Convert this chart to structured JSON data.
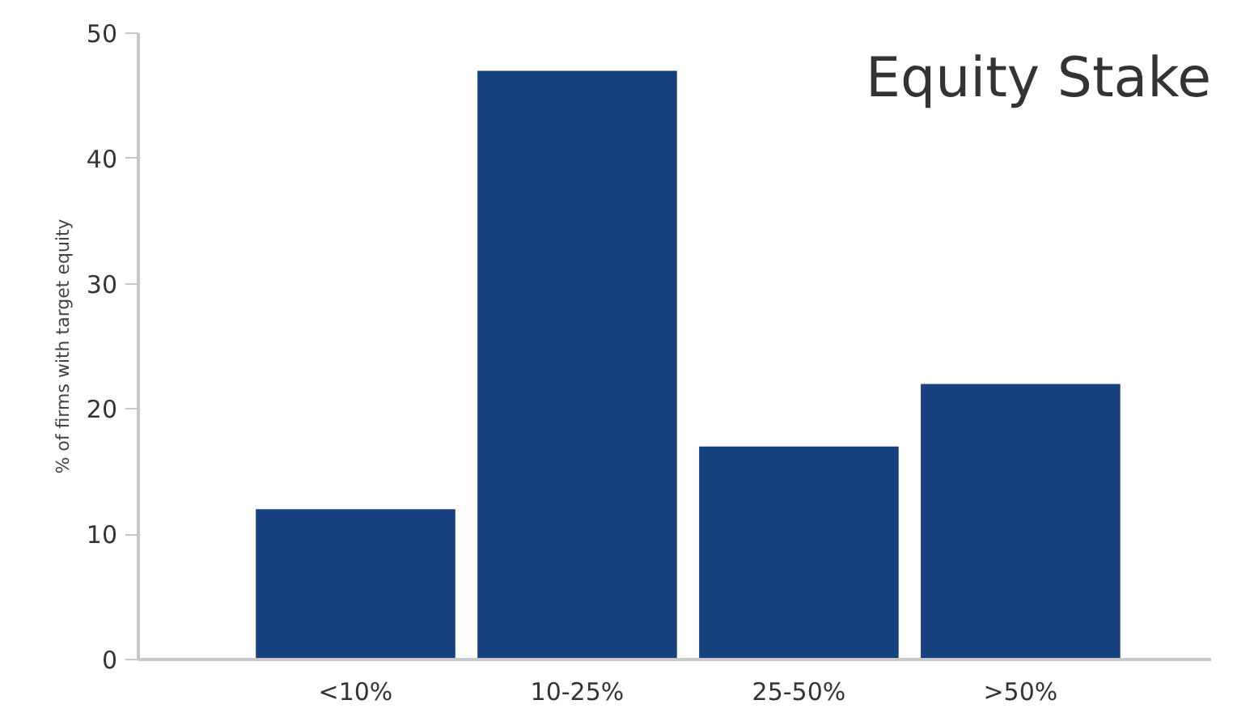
{
  "chart_data": {
    "type": "bar",
    "title": "Equity Stake",
    "ylabel": "% of firms with target equity",
    "categories": [
      "<10%",
      "10-25%",
      "25-50%",
      ">50%"
    ],
    "values": [
      12,
      47,
      17,
      22
    ],
    "color": "#17407e",
    "ylim": [
      0,
      50
    ],
    "yticks": [
      0,
      10,
      20,
      30,
      40,
      50
    ],
    "grid": false
  }
}
